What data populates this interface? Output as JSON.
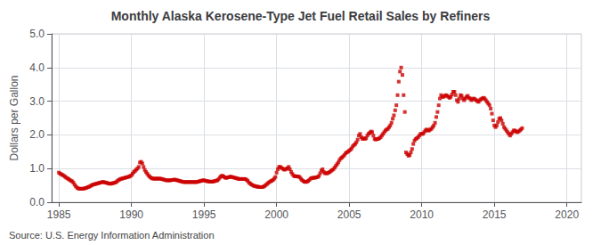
{
  "chart_data": {
    "type": "scatter",
    "title": "Monthly Alaska Kerosene-Type Jet Fuel Retail Sales by Refiners",
    "ylabel": "Dollars per Gallon",
    "source": "Source: U.S. Energy Information Administration",
    "color": "#cc0000",
    "marker": "square",
    "grid": true,
    "xlim": [
      1984.5,
      2021
    ],
    "xticks": [
      1985,
      1990,
      1995,
      2000,
      2005,
      2010,
      2015,
      2020
    ],
    "ylim": [
      0.0,
      5.0
    ],
    "yticks": [
      {
        "value": 0.0,
        "label": "0.0"
      },
      {
        "value": 1.0,
        "label": "1.0"
      },
      {
        "value": 2.0,
        "label": "2.0"
      },
      {
        "value": 3.0,
        "label": "3.0"
      },
      {
        "value": 4.0,
        "label": "4.0"
      },
      {
        "value": 5.0,
        "label": "5.0"
      }
    ],
    "x": [
      1985,
      1985.0833333333333,
      1985.1666666666667,
      1985.25,
      1985.3333333333333,
      1985.4166666666667,
      1985.5,
      1985.5833333333333,
      1985.6666666666667,
      1985.75,
      1985.8333333333333,
      1985.9166666666667,
      1986,
      1986.0833333333333,
      1986.1666666666667,
      1986.25,
      1986.3333333333333,
      1986.4166666666667,
      1986.5,
      1986.5833333333333,
      1986.6666666666667,
      1986.75,
      1986.8333333333333,
      1986.9166666666667,
      1987,
      1987.0833333333333,
      1987.1666666666667,
      1987.25,
      1987.3333333333333,
      1987.4166666666667,
      1987.5,
      1987.5833333333333,
      1987.6666666666667,
      1987.75,
      1987.8333333333333,
      1987.9166666666667,
      1988,
      1988.0833333333333,
      1988.1666666666667,
      1988.25,
      1988.3333333333333,
      1988.4166666666667,
      1988.5,
      1988.5833333333333,
      1988.6666666666667,
      1988.75,
      1988.8333333333333,
      1988.9166666666667,
      1989,
      1989.0833333333333,
      1989.1666666666667,
      1989.25,
      1989.3333333333333,
      1989.4166666666667,
      1989.5,
      1989.5833333333333,
      1989.6666666666667,
      1989.75,
      1989.8333333333333,
      1989.9166666666667,
      1990,
      1990.0833333333333,
      1990.1666666666667,
      1990.25,
      1990.3333333333333,
      1990.4166666666667,
      1990.5,
      1990.5833333333333,
      1990.6666666666667,
      1990.75,
      1990.8333333333333,
      1990.9166666666667,
      1991,
      1991.0833333333333,
      1991.1666666666667,
      1991.25,
      1991.3333333333333,
      1991.4166666666667,
      1991.5,
      1991.5833333333333,
      1991.6666666666667,
      1991.75,
      1991.8333333333333,
      1991.9166666666667,
      1992,
      1992.0833333333333,
      1992.1666666666667,
      1992.25,
      1992.3333333333333,
      1992.4166666666667,
      1992.5,
      1992.5833333333333,
      1992.6666666666667,
      1992.75,
      1992.8333333333333,
      1992.9166666666667,
      1993,
      1993.0833333333333,
      1993.1666666666667,
      1993.25,
      1993.3333333333333,
      1993.4166666666667,
      1993.5,
      1993.5833333333333,
      1993.6666666666667,
      1993.75,
      1993.8333333333333,
      1993.9166666666667,
      1994,
      1994.0833333333333,
      1994.1666666666667,
      1994.25,
      1994.3333333333333,
      1994.4166666666667,
      1994.5,
      1994.5833333333333,
      1994.6666666666667,
      1994.75,
      1994.8333333333333,
      1994.9166666666667,
      1995,
      1995.0833333333333,
      1995.1666666666667,
      1995.25,
      1995.3333333333333,
      1995.4166666666667,
      1995.5,
      1995.5833333333333,
      1995.6666666666667,
      1995.75,
      1995.8333333333333,
      1995.9166666666667,
      1996,
      1996.0833333333333,
      1996.1666666666667,
      1996.25,
      1996.3333333333333,
      1996.4166666666667,
      1996.5,
      1996.5833333333333,
      1996.6666666666667,
      1996.75,
      1996.8333333333333,
      1996.9166666666667,
      1997,
      1997.0833333333333,
      1997.1666666666667,
      1997.25,
      1997.3333333333333,
      1997.4166666666667,
      1997.5,
      1997.5833333333333,
      1997.6666666666667,
      1997.75,
      1997.8333333333333,
      1997.9166666666667,
      1998,
      1998.0833333333333,
      1998.1666666666667,
      1998.25,
      1998.3333333333333,
      1998.4166666666667,
      1998.5,
      1998.5833333333333,
      1998.6666666666667,
      1998.75,
      1998.8333333333333,
      1998.9166666666667,
      1999,
      1999.0833333333333,
      1999.1666666666667,
      1999.25,
      1999.3333333333333,
      1999.4166666666667,
      1999.5,
      1999.5833333333333,
      1999.6666666666667,
      1999.75,
      1999.8333333333333,
      1999.9166666666667,
      2000,
      2000.0833333333333,
      2000.1666666666667,
      2000.25,
      2000.3333333333333,
      2000.4166666666667,
      2000.5,
      2000.5833333333333,
      2000.6666666666667,
      2000.75,
      2000.8333333333333,
      2000.9166666666667,
      2001,
      2001.0833333333333,
      2001.1666666666667,
      2001.25,
      2001.3333333333333,
      2001.4166666666667,
      2001.5,
      2001.5833333333333,
      2001.6666666666667,
      2001.75,
      2001.8333333333333,
      2001.9166666666667,
      2002,
      2002.0833333333333,
      2002.1666666666667,
      2002.25,
      2002.3333333333333,
      2002.4166666666667,
      2002.5,
      2002.5833333333333,
      2002.6666666666667,
      2002.75,
      2002.8333333333333,
      2002.9166666666667,
      2003,
      2003.0833333333333,
      2003.1666666666667,
      2003.25,
      2003.3333333333333,
      2003.4166666666667,
      2003.5,
      2003.5833333333333,
      2003.6666666666667,
      2003.75,
      2003.8333333333333,
      2003.9166666666667,
      2004,
      2004.0833333333333,
      2004.1666666666667,
      2004.25,
      2004.3333333333333,
      2004.4166666666667,
      2004.5,
      2004.5833333333333,
      2004.6666666666667,
      2004.75,
      2004.8333333333333,
      2004.9166666666667,
      2005,
      2005.0833333333333,
      2005.1666666666667,
      2005.25,
      2005.3333333333333,
      2005.4166666666667,
      2005.5,
      2005.5833333333333,
      2005.6666666666667,
      2005.75,
      2005.8333333333333,
      2005.9166666666667,
      2006,
      2006.0833333333333,
      2006.1666666666667,
      2006.25,
      2006.3333333333333,
      2006.4166666666667,
      2006.5,
      2006.5833333333333,
      2006.6666666666667,
      2006.75,
      2006.8333333333333,
      2006.9166666666667,
      2007,
      2007.0833333333333,
      2007.1666666666667,
      2007.25,
      2007.3333333333333,
      2007.4166666666667,
      2007.5,
      2007.5833333333333,
      2007.6666666666667,
      2007.75,
      2007.8333333333333,
      2007.9166666666667,
      2008,
      2008.0833333333333,
      2008.1666666666667,
      2008.25,
      2008.3333333333333,
      2008.4166666666667,
      2008.5,
      2008.5833333333333,
      2008.6666666666667,
      2008.75,
      2008.8333333333333,
      2008.9166666666667,
      2009,
      2009.0833333333333,
      2009.1666666666667,
      2009.25,
      2009.3333333333333,
      2009.4166666666667,
      2009.5,
      2009.5833333333333,
      2009.6666666666667,
      2009.75,
      2009.8333333333333,
      2009.9166666666667,
      2010,
      2010.0833333333333,
      2010.1666666666667,
      2010.25,
      2010.3333333333333,
      2010.4166666666667,
      2010.5,
      2010.5833333333333,
      2010.6666666666667,
      2010.75,
      2010.8333333333333,
      2010.9166666666667,
      2011,
      2011.0833333333333,
      2011.1666666666667,
      2011.25,
      2011.3333333333333,
      2011.4166666666667,
      2011.5,
      2011.5833333333333,
      2011.6666666666667,
      2011.75,
      2011.8333333333333,
      2011.9166666666667,
      2012,
      2012.0833333333333,
      2012.1666666666667,
      2012.25,
      2012.3333333333333,
      2012.4166666666667,
      2012.5,
      2012.5833333333333,
      2012.6666666666667,
      2012.75,
      2012.8333333333333,
      2012.9166666666667,
      2013,
      2013.0833333333333,
      2013.1666666666667,
      2013.25,
      2013.3333333333333,
      2013.4166666666667,
      2013.5,
      2013.5833333333333,
      2013.6666666666667,
      2013.75,
      2013.8333333333333,
      2013.9166666666667,
      2014,
      2014.0833333333333,
      2014.1666666666667,
      2014.25,
      2014.3333333333333,
      2014.4166666666667,
      2014.5,
      2014.5833333333333,
      2014.6666666666667,
      2014.75,
      2014.8333333333333,
      2014.9166666666667,
      2015,
      2015.0833333333333,
      2015.1666666666667,
      2015.25,
      2015.3333333333333,
      2015.4166666666667,
      2015.5,
      2015.5833333333333,
      2015.6666666666667,
      2015.75,
      2015.8333333333333,
      2015.9166666666667,
      2016,
      2016.0833333333333,
      2016.1666666666667,
      2016.25,
      2016.3333333333333,
      2016.4166666666667,
      2016.5,
      2016.5833333333333,
      2016.6666666666667,
      2016.75,
      2016.8333333333333,
      2016.9166666666667
    ],
    "values": [
      0.88,
      0.85,
      0.83,
      0.81,
      0.79,
      0.76,
      0.73,
      0.71,
      0.69,
      0.66,
      0.64,
      0.62,
      0.58,
      0.52,
      0.47,
      0.43,
      0.41,
      0.4,
      0.4,
      0.4,
      0.4,
      0.41,
      0.42,
      0.43,
      0.45,
      0.46,
      0.48,
      0.5,
      0.52,
      0.53,
      0.54,
      0.55,
      0.56,
      0.57,
      0.58,
      0.59,
      0.6,
      0.6,
      0.59,
      0.58,
      0.57,
      0.56,
      0.55,
      0.55,
      0.56,
      0.57,
      0.58,
      0.59,
      0.62,
      0.65,
      0.67,
      0.69,
      0.7,
      0.71,
      0.72,
      0.73,
      0.74,
      0.75,
      0.76,
      0.78,
      0.8,
      0.85,
      0.9,
      0.93,
      0.97,
      1.0,
      1.05,
      1.18,
      1.2,
      1.15,
      1.05,
      0.96,
      0.9,
      0.85,
      0.8,
      0.76,
      0.73,
      0.71,
      0.7,
      0.7,
      0.7,
      0.7,
      0.7,
      0.7,
      0.7,
      0.69,
      0.68,
      0.67,
      0.66,
      0.65,
      0.65,
      0.65,
      0.65,
      0.66,
      0.66,
      0.67,
      0.67,
      0.66,
      0.65,
      0.64,
      0.63,
      0.62,
      0.61,
      0.6,
      0.6,
      0.6,
      0.6,
      0.6,
      0.6,
      0.6,
      0.6,
      0.6,
      0.6,
      0.6,
      0.6,
      0.61,
      0.62,
      0.63,
      0.64,
      0.65,
      0.65,
      0.64,
      0.63,
      0.62,
      0.62,
      0.61,
      0.61,
      0.61,
      0.62,
      0.63,
      0.64,
      0.65,
      0.68,
      0.73,
      0.77,
      0.79,
      0.77,
      0.74,
      0.72,
      0.73,
      0.74,
      0.75,
      0.76,
      0.75,
      0.74,
      0.73,
      0.72,
      0.71,
      0.7,
      0.69,
      0.69,
      0.69,
      0.69,
      0.69,
      0.69,
      0.67,
      0.64,
      0.59,
      0.56,
      0.53,
      0.51,
      0.49,
      0.48,
      0.47,
      0.46,
      0.46,
      0.45,
      0.45,
      0.45,
      0.46,
      0.48,
      0.51,
      0.54,
      0.57,
      0.6,
      0.62,
      0.64,
      0.66,
      0.7,
      0.75,
      0.88,
      0.98,
      1.05,
      1.05,
      1.02,
      1.0,
      0.97,
      0.97,
      0.99,
      1.01,
      1.05,
      0.98,
      0.9,
      0.84,
      0.79,
      0.77,
      0.77,
      0.77,
      0.76,
      0.75,
      0.7,
      0.66,
      0.63,
      0.61,
      0.6,
      0.61,
      0.63,
      0.66,
      0.7,
      0.72,
      0.72,
      0.73,
      0.73,
      0.74,
      0.75,
      0.78,
      0.86,
      0.94,
      0.98,
      0.9,
      0.86,
      0.86,
      0.86,
      0.88,
      0.9,
      0.93,
      0.96,
      0.98,
      1.03,
      1.08,
      1.13,
      1.18,
      1.25,
      1.3,
      1.33,
      1.36,
      1.4,
      1.45,
      1.48,
      1.5,
      1.53,
      1.56,
      1.6,
      1.66,
      1.7,
      1.73,
      1.78,
      1.86,
      1.98,
      2.03,
      1.93,
      1.88,
      1.9,
      1.88,
      1.9,
      1.98,
      2.03,
      2.06,
      2.1,
      2.08,
      1.98,
      1.88,
      1.86,
      1.88,
      1.88,
      1.9,
      1.93,
      1.98,
      2.03,
      2.08,
      2.13,
      2.16,
      2.18,
      2.23,
      2.28,
      2.36,
      2.48,
      2.58,
      2.73,
      2.88,
      3.18,
      3.58,
      3.88,
      4.0,
      3.78,
      3.18,
      2.68,
      1.48,
      1.43,
      1.38,
      1.4,
      1.48,
      1.58,
      1.73,
      1.83,
      1.88,
      1.9,
      1.93,
      1.98,
      2.03,
      2.03,
      2.03,
      2.08,
      2.13,
      2.16,
      2.13,
      2.13,
      2.16,
      2.18,
      2.23,
      2.28,
      2.36,
      2.53,
      2.68,
      2.88,
      3.08,
      3.18,
      3.13,
      3.13,
      3.16,
      3.18,
      3.16,
      3.13,
      3.1,
      3.13,
      3.2,
      3.28,
      3.28,
      3.18,
      3.03,
      2.98,
      3.08,
      3.18,
      3.16,
      3.08,
      3.03,
      3.08,
      3.13,
      3.16,
      3.1,
      3.08,
      3.03,
      3.06,
      3.08,
      3.06,
      3.03,
      3.0,
      2.98,
      3.03,
      3.06,
      3.08,
      3.1,
      3.08,
      3.03,
      2.98,
      2.93,
      2.88,
      2.78,
      2.63,
      2.43,
      2.28,
      2.23,
      2.28,
      2.38,
      2.48,
      2.5,
      2.43,
      2.33,
      2.23,
      2.18,
      2.13,
      2.08,
      2.03,
      1.98,
      2.03,
      2.08,
      2.13,
      2.13,
      2.1,
      2.08,
      2.1,
      2.13,
      2.16,
      2.2
    ]
  }
}
